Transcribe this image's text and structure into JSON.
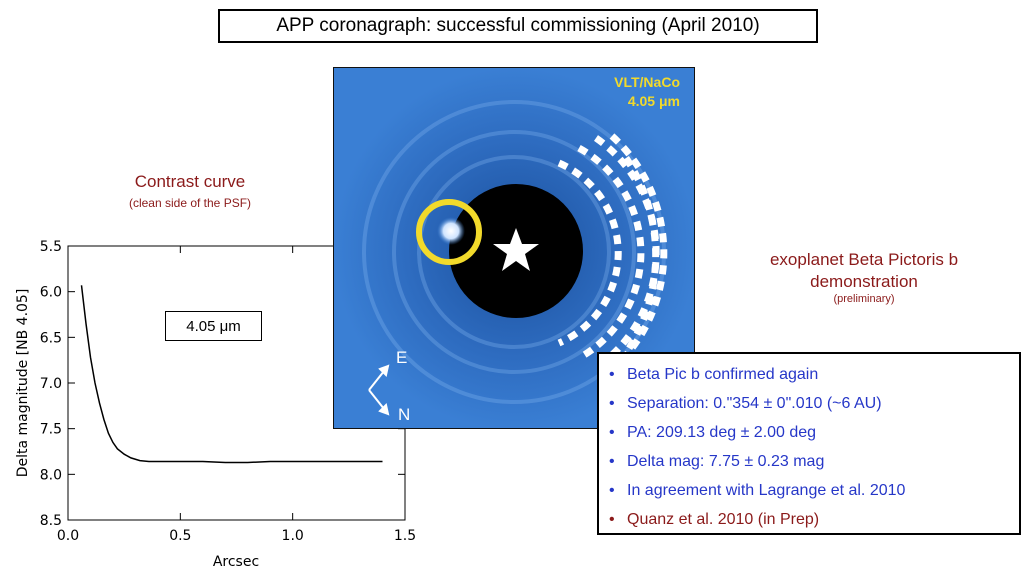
{
  "title": "APP coronagraph: successful commissioning (April 2010)",
  "curve_heading": "Contrast curve",
  "curve_subheading": "(clean side of the PSF)",
  "wavelength_box": "4.05 μm",
  "image": {
    "instrument": "VLT/NaCo",
    "wavelength": "4.05 μm",
    "compass_e": "E",
    "compass_n": "N"
  },
  "planet_heading": "exoplanet Beta Pictoris b demonstration",
  "planet_subheading": "(preliminary)",
  "bullets": [
    "Beta Pic  b confirmed again",
    "Separation: 0.\"354 ± 0\".010  (~6 AU)",
    "PA: 209.13 deg ± 2.00 deg",
    "Delta mag: 7.75 ± 0.23 mag",
    "In agreement with  Lagrange et al. 2010",
    "Quanz et al. 2010 (in Prep)"
  ],
  "colors": {
    "accent_red": "#8b1a1a",
    "bullet_blue": "#2637c8",
    "image_blue": "#2f72c6",
    "label_yellow": "#f2da2b"
  },
  "chart_data": {
    "type": "line",
    "xlabel": "Arcsec",
    "ylabel": "Delta magnitude [NB 4.05]",
    "xlim": [
      0.0,
      1.5
    ],
    "ylim": [
      8.5,
      5.5
    ],
    "inverted_y": true,
    "x_ticks": [
      0.0,
      0.5,
      1.0,
      1.5
    ],
    "y_ticks": [
      5.5,
      6.0,
      6.5,
      7.0,
      7.5,
      8.0,
      8.5
    ],
    "x_tick_labels": [
      "0.0",
      "0.5",
      "1.0",
      "1.5"
    ],
    "y_tick_labels": [
      "5.5",
      "6.0",
      "6.5",
      "7.0",
      "7.5",
      "8.0",
      "8.5"
    ],
    "x": [
      0.06,
      0.08,
      0.1,
      0.12,
      0.14,
      0.16,
      0.18,
      0.2,
      0.22,
      0.25,
      0.28,
      0.32,
      0.36,
      0.4,
      0.5,
      0.6,
      0.7,
      0.8,
      0.9,
      1.0,
      1.1,
      1.2,
      1.3,
      1.4
    ],
    "y": [
      5.93,
      6.35,
      6.72,
      7.0,
      7.22,
      7.4,
      7.55,
      7.65,
      7.72,
      7.78,
      7.82,
      7.85,
      7.86,
      7.86,
      7.86,
      7.86,
      7.87,
      7.87,
      7.86,
      7.86,
      7.86,
      7.86,
      7.86,
      7.86
    ]
  }
}
